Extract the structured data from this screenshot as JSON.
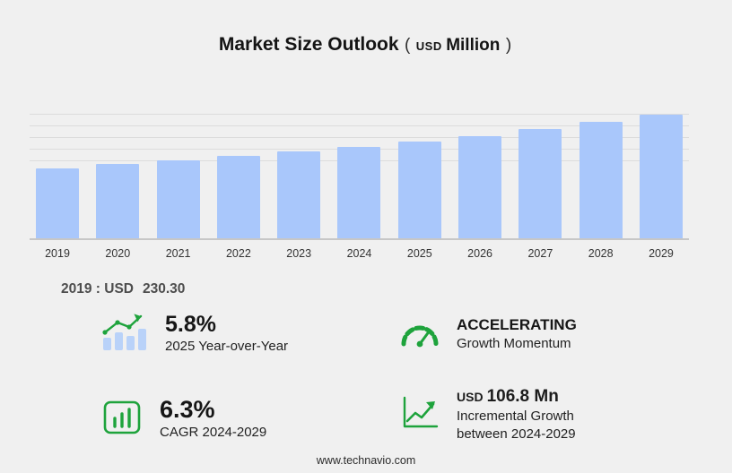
{
  "title": {
    "main": "Market Size Outlook",
    "paren_open": "(",
    "currency": "USD",
    "unit": "Million",
    "paren_close": ")"
  },
  "chart_data": {
    "type": "bar",
    "title": "Market Size Outlook (USD Million)",
    "categories": [
      "2019",
      "2020",
      "2021",
      "2022",
      "2023",
      "2024",
      "2025",
      "2026",
      "2027",
      "2028",
      "2029"
    ],
    "values": [
      230.3,
      242.6,
      255.6,
      269.2,
      283.6,
      298.7,
      316.0,
      336.3,
      357.9,
      380.9,
      405.5
    ],
    "xlabel": "",
    "ylabel": "",
    "ylim": [
      0,
      420
    ],
    "grid": "horizontal-top-only",
    "legend": "none",
    "bar_color": "#a9c7fb"
  },
  "annotation_2019": {
    "label": "2019 : USD",
    "value": "230.30"
  },
  "stats": [
    {
      "icon": "bar-chart-trend-icon",
      "value": "5.8%",
      "label": "2025 Year-over-Year"
    },
    {
      "icon": "speedometer-icon",
      "value": "ACCELERATING",
      "label": "Growth Momentum"
    },
    {
      "icon": "bar-chart-frame-icon",
      "value": "6.3%",
      "label": "CAGR 2024-2029"
    },
    {
      "icon": "line-growth-icon",
      "value_prefix": "USD",
      "value": "106.8 Mn",
      "label_line1": "Incremental Growth",
      "label_line2": "between 2024-2029"
    }
  ],
  "footer": {
    "url": "www.technavio.com"
  },
  "colors": {
    "background": "#f0f0f0",
    "bar": "#a9c7fb",
    "icon_green": "#1ea33c",
    "icon_blue": "#b9d2f9",
    "text": "#1c1c1c"
  }
}
